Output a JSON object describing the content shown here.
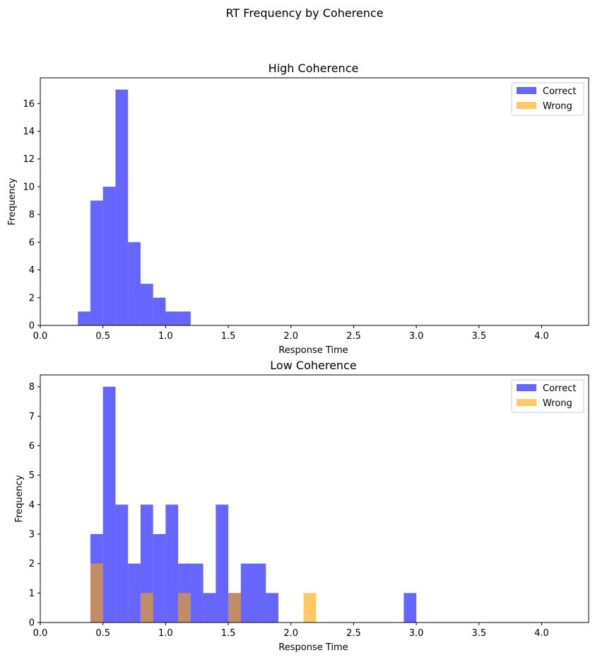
{
  "figure_title": "RT Frequency by Coherence",
  "colors": {
    "correct": "#0000ff",
    "wrong": "#ffa500",
    "bar_opacity": 0.6
  },
  "chart_data": [
    {
      "type": "bar",
      "title": "High Coherence",
      "xlabel": "Response Time",
      "ylabel": "Frequency",
      "xlim": [
        0,
        4.375
      ],
      "ylim": [
        0,
        17.85
      ],
      "xticks": [
        0.0,
        0.5,
        1.0,
        1.5,
        2.0,
        2.5,
        3.0,
        3.5,
        4.0
      ],
      "xtick_labels": [
        "0.0",
        "0.5",
        "1.0",
        "1.5",
        "2.0",
        "2.5",
        "3.0",
        "3.5",
        "4.0"
      ],
      "yticks": [
        0,
        2,
        4,
        6,
        8,
        10,
        12,
        14,
        16
      ],
      "ytick_labels": [
        "0",
        "2",
        "4",
        "6",
        "8",
        "10",
        "12",
        "14",
        "16"
      ],
      "legend": {
        "placement": "top-right",
        "entries": [
          "Correct",
          "Wrong"
        ]
      },
      "bin_width": 0.1,
      "series": [
        {
          "name": "Correct",
          "bins": [
            {
              "x": 0.3,
              "count": 1
            },
            {
              "x": 0.4,
              "count": 9
            },
            {
              "x": 0.5,
              "count": 10
            },
            {
              "x": 0.6,
              "count": 17
            },
            {
              "x": 0.7,
              "count": 6
            },
            {
              "x": 0.8,
              "count": 3
            },
            {
              "x": 0.9,
              "count": 2
            },
            {
              "x": 1.0,
              "count": 1
            },
            {
              "x": 1.1,
              "count": 1
            }
          ]
        },
        {
          "name": "Wrong",
          "bins": []
        }
      ]
    },
    {
      "type": "bar",
      "title": "Low Coherence",
      "xlabel": "Response Time",
      "ylabel": "Frequency",
      "xlim": [
        0,
        4.375
      ],
      "ylim": [
        0,
        8.4
      ],
      "xticks": [
        0.0,
        0.5,
        1.0,
        1.5,
        2.0,
        2.5,
        3.0,
        3.5,
        4.0
      ],
      "xtick_labels": [
        "0.0",
        "0.5",
        "1.0",
        "1.5",
        "2.0",
        "2.5",
        "3.0",
        "3.5",
        "4.0"
      ],
      "yticks": [
        0,
        1,
        2,
        3,
        4,
        5,
        6,
        7,
        8
      ],
      "ytick_labels": [
        "0",
        "1",
        "2",
        "3",
        "4",
        "5",
        "6",
        "7",
        "8"
      ],
      "legend": {
        "placement": "top-right",
        "entries": [
          "Correct",
          "Wrong"
        ]
      },
      "bin_width": 0.1,
      "series": [
        {
          "name": "Correct",
          "bins": [
            {
              "x": 0.4,
              "count": 3
            },
            {
              "x": 0.5,
              "count": 8
            },
            {
              "x": 0.6,
              "count": 4
            },
            {
              "x": 0.7,
              "count": 2
            },
            {
              "x": 0.8,
              "count": 4
            },
            {
              "x": 0.9,
              "count": 3
            },
            {
              "x": 1.0,
              "count": 4
            },
            {
              "x": 1.1,
              "count": 2
            },
            {
              "x": 1.2,
              "count": 2
            },
            {
              "x": 1.3,
              "count": 1
            },
            {
              "x": 1.4,
              "count": 4
            },
            {
              "x": 1.5,
              "count": 1
            },
            {
              "x": 1.6,
              "count": 2
            },
            {
              "x": 1.7,
              "count": 2
            },
            {
              "x": 1.8,
              "count": 1
            },
            {
              "x": 2.9,
              "count": 1
            }
          ]
        },
        {
          "name": "Wrong",
          "bins": [
            {
              "x": 0.4,
              "count": 2
            },
            {
              "x": 0.8,
              "count": 1
            },
            {
              "x": 1.1,
              "count": 1
            },
            {
              "x": 1.5,
              "count": 1
            },
            {
              "x": 2.1,
              "count": 1
            }
          ]
        }
      ]
    }
  ]
}
